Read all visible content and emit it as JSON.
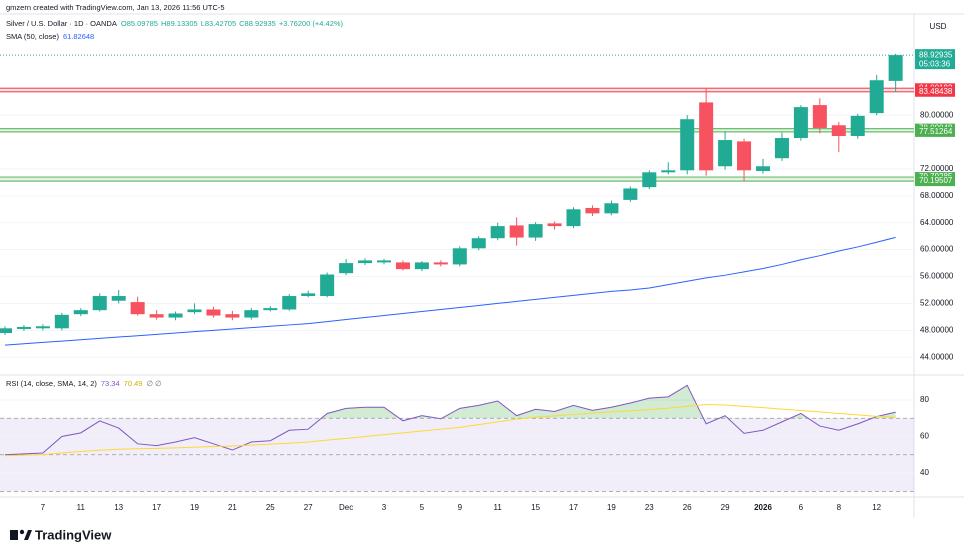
{
  "header": {
    "credit": "gmzern created with TradingView.com, Jan 13, 2026 11:56 UTC-5",
    "open": "O85.09785",
    "high": "H89.13305",
    "low": "L83.42705",
    "close": "C88.92935",
    "change": "+3.76200 (+4.42%)"
  },
  "currency": "USD",
  "countdown": "05:03:36",
  "branding": "TradingView",
  "chart_data": [
    {
      "type": "candlestick",
      "categories": [
        null,
        null,
        "7",
        null,
        "11",
        null,
        "13",
        null,
        "17",
        null,
        "19",
        null,
        "21",
        null,
        "25",
        null,
        "27",
        null,
        "Dec",
        null,
        "3",
        null,
        "5",
        null,
        "9",
        null,
        "11",
        null,
        "15",
        null,
        "17",
        null,
        "19",
        null,
        "23",
        null,
        "26",
        null,
        "29",
        null,
        "2026",
        null,
        "6",
        null,
        "8",
        null,
        "12",
        null
      ],
      "series": [
        {
          "name": "Silver / U.S. Dollar · 1D · OANDA",
          "up_color": "#22ab94",
          "down_color": "#f7525f",
          "open": [
            47.6,
            48.2,
            48.3,
            48.3,
            50.4,
            51.0,
            52.4,
            52.2,
            50.4,
            49.9,
            50.7,
            51.1,
            50.4,
            49.9,
            51.0,
            51.1,
            53.1,
            53.1,
            56.5,
            58.0,
            58.1,
            58.1,
            57.1,
            58.1,
            57.8,
            60.2,
            61.7,
            63.6,
            61.8,
            63.9,
            63.5,
            66.2,
            65.4,
            67.4,
            69.3,
            71.5,
            71.8,
            81.9,
            72.4,
            76.1,
            71.7,
            73.6,
            76.6,
            81.5,
            78.5,
            76.9,
            80.3,
            85.09785
          ],
          "high": [
            48.6,
            48.8,
            48.9,
            50.6,
            51.3,
            53.5,
            54.0,
            53.0,
            51.0,
            50.8,
            52.0,
            51.5,
            50.9,
            51.3,
            51.6,
            53.4,
            53.9,
            56.6,
            58.6,
            58.7,
            58.6,
            58.4,
            58.3,
            58.4,
            60.5,
            62.0,
            64.0,
            64.8,
            64.1,
            64.2,
            66.3,
            66.6,
            67.3,
            69.4,
            71.8,
            73.0,
            80.0,
            84.0,
            77.6,
            76.5,
            73.5,
            77.4,
            81.5,
            82.5,
            79.0,
            80.2,
            86.0,
            89.13305
          ],
          "low": [
            47.3,
            47.9,
            48.0,
            48.0,
            50.1,
            50.8,
            52.0,
            50.2,
            49.6,
            49.5,
            50.4,
            49.9,
            49.5,
            49.6,
            50.8,
            50.9,
            52.9,
            52.9,
            56.2,
            57.7,
            57.8,
            56.9,
            56.8,
            57.5,
            57.5,
            59.9,
            61.4,
            60.6,
            61.3,
            63.0,
            63.2,
            65.0,
            65.1,
            67.1,
            69.0,
            71.2,
            71.2,
            71.0,
            71.9,
            70.2,
            71.3,
            73.2,
            76.2,
            77.3,
            74.5,
            76.5,
            80.0,
            83.42705
          ],
          "close": [
            48.3,
            48.5,
            48.6,
            50.3,
            51.0,
            53.1,
            53.1,
            50.4,
            49.9,
            50.5,
            51.1,
            50.2,
            49.9,
            51.0,
            51.3,
            53.1,
            53.5,
            56.3,
            58.0,
            58.4,
            58.4,
            57.1,
            58.1,
            57.8,
            60.2,
            61.7,
            63.5,
            61.8,
            63.8,
            63.5,
            66.0,
            65.4,
            66.9,
            69.1,
            71.5,
            71.8,
            79.4,
            71.8,
            76.3,
            71.8,
            72.4,
            76.6,
            81.2,
            78.1,
            76.9,
            79.9,
            85.2,
            88.92935
          ]
        },
        {
          "name": "SMA (50, close)",
          "color": "#2962ff",
          "values": [
            45.8,
            46.0,
            46.2,
            46.4,
            46.6,
            46.8,
            47.0,
            47.2,
            47.4,
            47.6,
            47.8,
            48.0,
            48.2,
            48.4,
            48.6,
            48.8,
            49.0,
            49.3,
            49.6,
            49.9,
            50.2,
            50.5,
            50.8,
            51.1,
            51.4,
            51.7,
            52.0,
            52.3,
            52.6,
            52.9,
            53.2,
            53.5,
            53.8,
            54.0,
            54.3,
            54.8,
            55.3,
            55.8,
            56.2,
            56.7,
            57.2,
            57.8,
            58.5,
            59.1,
            59.8,
            60.4,
            61.1,
            61.82648
          ]
        }
      ],
      "levels": [
        {
          "value": 84.00192,
          "color": "#f23645"
        },
        {
          "value": 83.48438,
          "color": "#f23645"
        },
        {
          "value": 78.00048,
          "color": "#4caf50"
        },
        {
          "value": 77.51264,
          "color": "#4caf50"
        },
        {
          "value": 70.79285,
          "color": "#4caf50"
        },
        {
          "value": 70.19507,
          "color": "#4caf50"
        }
      ],
      "ylim": [
        41.8,
        94.9
      ],
      "yticks": [
        {
          "value": 44,
          "label": "44.00000"
        },
        {
          "value": 48,
          "label": "48.00000"
        },
        {
          "value": 52,
          "label": "52.00000"
        },
        {
          "value": 56,
          "label": "56.00000"
        },
        {
          "value": 60,
          "label": "60.00000"
        },
        {
          "value": 64,
          "label": "64.00000"
        },
        {
          "value": 68,
          "label": "68.00000"
        },
        {
          "value": 72,
          "label": "72.00000"
        },
        {
          "value": 80,
          "label": "80.00000"
        }
      ],
      "grid": true
    },
    {
      "type": "line",
      "title": "RSI (14, close, SMA, 14, 2)",
      "legend_extra": "∅ ∅",
      "series": [
        {
          "color": "#7e57c2",
          "values": [
            50,
            50.5,
            51,
            60,
            62,
            68.5,
            64.6,
            56,
            55,
            57,
            59.4,
            56,
            52.6,
            57,
            57.7,
            63.4,
            64,
            72.6,
            75.4,
            76,
            76,
            68.6,
            71.4,
            69.7,
            75.4,
            77,
            79.4,
            71.4,
            74.9,
            73.7,
            77,
            74.3,
            76,
            78.3,
            81,
            81.7,
            88,
            66.9,
            71.4,
            61.7,
            63.4,
            68,
            72.6,
            65.7,
            63.4,
            66.9,
            70.9,
            73.34
          ]
        },
        {
          "color": "#fdd835",
          "values": [
            49.5,
            49.8,
            50.1,
            51,
            51.8,
            52.5,
            53,
            53.3,
            53.5,
            53.8,
            54.2,
            54.5,
            54.8,
            55.3,
            55.8,
            56.3,
            57,
            58,
            59,
            60,
            61,
            62,
            63,
            64,
            65,
            66.5,
            68,
            69.5,
            70.5,
            71.3,
            72,
            72.8,
            73.5,
            74,
            74.7,
            75.5,
            76.5,
            77.5,
            77.2,
            76.5,
            75.8,
            75,
            74.2,
            73.5,
            72.6,
            71.8,
            71,
            70.49
          ]
        }
      ],
      "levels": [
        70,
        50,
        30
      ],
      "ylim": [
        28,
        92
      ],
      "yticks": [
        40,
        60,
        80
      ]
    }
  ]
}
